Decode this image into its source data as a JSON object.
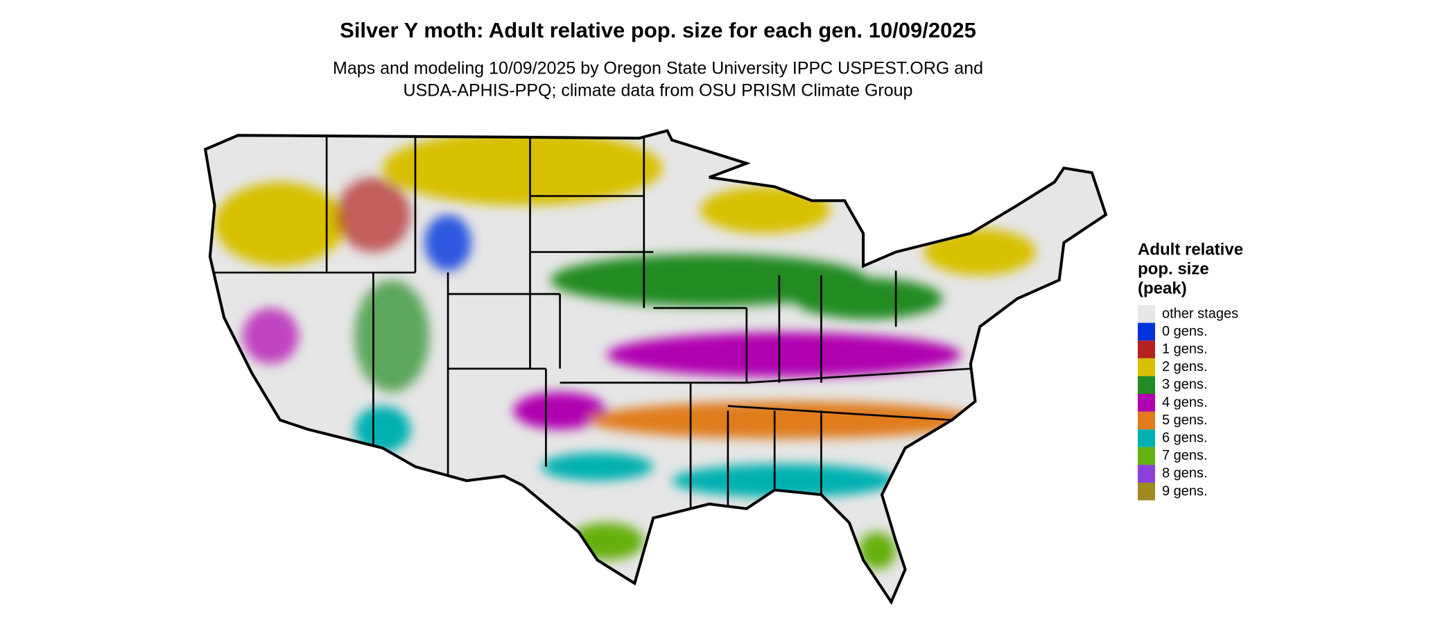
{
  "title": "Silver Y moth: Adult relative pop. size for each gen. 10/09/2025",
  "subtitle_lines": [
    "Maps and modeling 10/09/2025 by Oregon State University IPPC USPEST.ORG and",
    "USDA-APHIS-PPQ; climate data from OSU PRISM Climate Group"
  ],
  "legend": {
    "title_lines": [
      "Adult relative",
      "pop. size",
      "(peak)"
    ],
    "items": [
      {
        "label": "other stages",
        "color": "#e6e6e6"
      },
      {
        "label": "0 gens.",
        "color": "#0033dd"
      },
      {
        "label": "1 gens.",
        "color": "#b22222"
      },
      {
        "label": "2 gens.",
        "color": "#d8c000"
      },
      {
        "label": "3 gens.",
        "color": "#228b22"
      },
      {
        "label": "4 gens.",
        "color": "#b000b0"
      },
      {
        "label": "5 gens.",
        "color": "#e07c1a"
      },
      {
        "label": "6 gens.",
        "color": "#00b0b0"
      },
      {
        "label": "7 gens.",
        "color": "#66b010"
      },
      {
        "label": "8 gens.",
        "color": "#8a40dd"
      },
      {
        "label": "9 gens.",
        "color": "#a08a20"
      }
    ]
  }
}
